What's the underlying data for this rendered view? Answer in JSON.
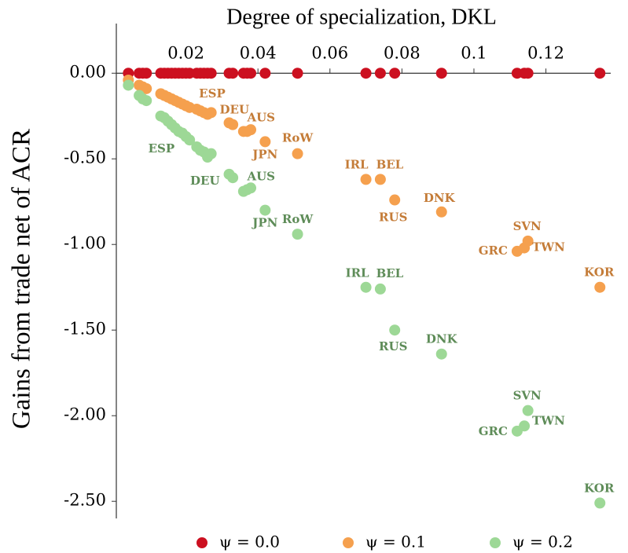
{
  "chart_data": {
    "type": "scatter",
    "title": "Degree of specialization, DKL",
    "y_label": "Gains from trade net of ACR",
    "x": [
      0.004,
      0.007,
      0.008,
      0.009,
      0.013,
      0.014,
      0.015,
      0.016,
      0.017,
      0.018,
      0.019,
      0.02,
      0.021,
      0.023,
      0.024,
      0.025,
      0.026,
      0.027,
      0.032,
      0.033,
      0.036,
      0.037,
      0.038,
      0.042,
      0.051,
      0.07,
      0.074,
      0.078,
      0.091,
      0.112,
      0.114,
      0.115,
      0.135
    ],
    "series": [
      {
        "name": "ψ = 0.0",
        "color": "#cc1020",
        "values": [
          0,
          0,
          0,
          0,
          0,
          0,
          0,
          0,
          0,
          0,
          0,
          0,
          0,
          0,
          0,
          0,
          0,
          0,
          0,
          0,
          0,
          0,
          0,
          0,
          0,
          0,
          0,
          0,
          0,
          0,
          0,
          0,
          0
        ]
      },
      {
        "name": "ψ = 0.1",
        "color": "#f5a04e",
        "label_color": "#c47c38",
        "values": [
          -0.04,
          -0.07,
          -0.08,
          -0.09,
          -0.12,
          -0.13,
          -0.14,
          -0.15,
          -0.16,
          -0.17,
          -0.18,
          -0.19,
          -0.2,
          -0.21,
          -0.22,
          -0.23,
          -0.24,
          -0.23,
          -0.29,
          -0.3,
          -0.34,
          -0.34,
          -0.33,
          -0.4,
          -0.47,
          -0.62,
          -0.62,
          -0.74,
          -0.81,
          -1.04,
          -1.02,
          -0.98,
          -1.25
        ],
        "labels": [
          null,
          null,
          null,
          null,
          null,
          null,
          null,
          null,
          null,
          null,
          null,
          null,
          "ESP",
          null,
          null,
          null,
          null,
          null,
          "DEU",
          null,
          null,
          "AUS",
          null,
          "JPN",
          "RoW",
          "IRL",
          "BEL",
          "RUS",
          "DNK",
          "GRC",
          "TWN",
          "SVN",
          "KOR"
        ]
      },
      {
        "name": "ψ = 0.2",
        "color": "#9dd896",
        "label_color": "#5e8c58",
        "values": [
          -0.07,
          -0.13,
          -0.15,
          -0.16,
          -0.25,
          -0.26,
          -0.28,
          -0.3,
          -0.32,
          -0.34,
          -0.35,
          -0.37,
          -0.39,
          -0.43,
          -0.45,
          -0.46,
          -0.49,
          -0.47,
          -0.59,
          -0.61,
          -0.69,
          -0.68,
          -0.67,
          -0.8,
          -0.94,
          -1.25,
          -1.26,
          -1.5,
          -1.64,
          -2.09,
          -2.06,
          -1.97,
          -2.51
        ],
        "labels": [
          null,
          null,
          null,
          null,
          null,
          null,
          null,
          null,
          null,
          null,
          null,
          null,
          "ESP",
          null,
          null,
          null,
          null,
          null,
          "DEU",
          null,
          null,
          "AUS",
          null,
          "JPN",
          "RoW",
          "IRL",
          "BEL",
          "RUS",
          "DNK",
          "GRC",
          "TWN",
          "SVN",
          "KOR"
        ]
      }
    ],
    "xlim": [
      0,
      0.138
    ],
    "ylim": [
      -2.6,
      0.29
    ],
    "xticks": [
      0.02,
      0.04,
      0.06,
      0.08,
      0.1,
      0.12
    ],
    "yticks": [
      {
        "value": 0,
        "label": "0.00"
      },
      {
        "value": -0.5,
        "label": "-0.50"
      },
      {
        "value": -1,
        "label": "-1.00"
      },
      {
        "value": -1.5,
        "label": "-1.50"
      },
      {
        "value": -2,
        "label": "-2.00"
      },
      {
        "value": -2.5,
        "label": "-2.50"
      }
    ],
    "legend": "bottom"
  }
}
